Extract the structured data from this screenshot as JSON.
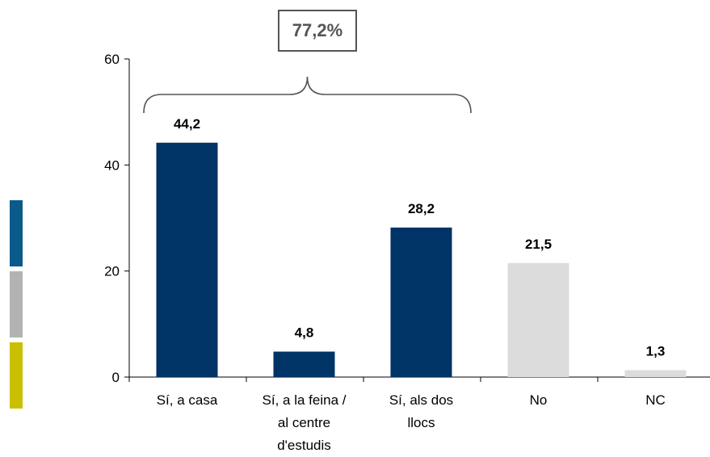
{
  "chart_data": {
    "type": "bar",
    "categories": [
      [
        "Sí, a casa"
      ],
      [
        "Sí, a la feina /",
        "al centre",
        "d'estudis"
      ],
      [
        "Sí, als dos",
        "llocs"
      ],
      [
        "No"
      ],
      [
        "NC"
      ]
    ],
    "values": [
      44.2,
      4.8,
      28.2,
      21.5,
      1.3
    ],
    "value_labels": [
      "44,2",
      "4,8",
      "28,2",
      "21,5",
      "1,3"
    ],
    "bar_colors": [
      "#003366",
      "#003366",
      "#003366",
      "#dcdcdc",
      "#dcdcdc"
    ],
    "ylim": [
      0,
      60
    ],
    "yticks": [
      0,
      20,
      40,
      60
    ],
    "grid": false,
    "summary": {
      "label": "77,2%",
      "spans_categories": [
        0,
        2
      ]
    },
    "side_stripes": [
      "#0a5a8c",
      "#b3b3b3",
      "#c8c000"
    ]
  }
}
